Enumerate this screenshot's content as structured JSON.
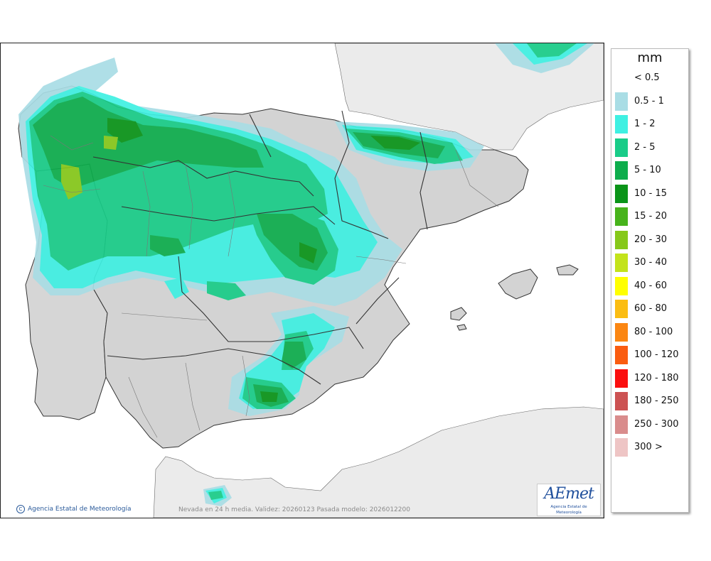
{
  "legend": {
    "unit": "mm",
    "items": [
      {
        "label": "< 0.5",
        "color": "#ffffff"
      },
      {
        "label": "0.5 - 1",
        "color": "#a9dde5"
      },
      {
        "label": "1 - 2",
        "color": "#3ff0e2"
      },
      {
        "label": "2 - 5",
        "color": "#19cc88"
      },
      {
        "label": "5 - 10",
        "color": "#0dad4c"
      },
      {
        "label": "10 - 15",
        "color": "#0a9418"
      },
      {
        "label": "15 - 20",
        "color": "#47b31b"
      },
      {
        "label": "20 - 30",
        "color": "#86c81a"
      },
      {
        "label": "30 - 40",
        "color": "#c3e31b"
      },
      {
        "label": "40 - 60",
        "color": "#ffff00"
      },
      {
        "label": "60 - 80",
        "color": "#fbbd12"
      },
      {
        "label": "80 - 100",
        "color": "#fb8612"
      },
      {
        "label": "100 - 120",
        "color": "#fa5c10"
      },
      {
        "label": "120 - 180",
        "color": "#fb0f0f"
      },
      {
        "label": "180 - 250",
        "color": "#cc5252"
      },
      {
        "label": "250 - 300",
        "color": "#d98c8c"
      },
      {
        "label": "300 >",
        "color": "#eec5c5"
      }
    ]
  },
  "footer": {
    "credit": "Agencia Estatal de Meteorología",
    "caption": "Nevada en 24 h media. Validez: 20260123 Pasada modelo: 2026012200"
  },
  "logo": {
    "word": "AEmet",
    "subtitle": "Agencia Estatal de Meteorología"
  },
  "colors": {
    "sea": "#ffffff",
    "land": "#d3d3d3",
    "foreign_land": "#ebebeb",
    "borders": "#333333"
  }
}
